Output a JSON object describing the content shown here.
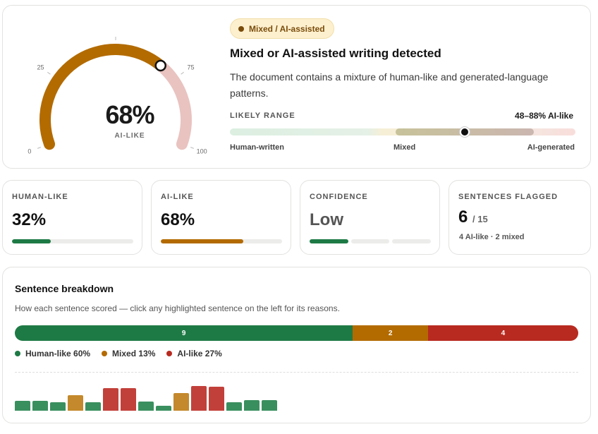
{
  "summary": {
    "gauge": {
      "value": 68,
      "display": "68%",
      "caption": "AI-LIKE",
      "ticks": [
        "0",
        "25",
        "50",
        "75",
        "100"
      ],
      "colors": {
        "filled": "#b36b00",
        "ai_zone": "#e9c3c0",
        "track": "#ececea"
      }
    },
    "badge": "Mixed / AI-assisted",
    "verdict": "Mixed or AI-assisted writing detected",
    "description": "The document contains a mixture of human-like and generated-language patterns.",
    "range": {
      "label": "LIKELY RANGE",
      "value_text": "48–88% AI-like",
      "low": 48,
      "high": 88,
      "point": 68,
      "axis_labels": {
        "left": "Human-written",
        "middle": "Mixed",
        "right": "AI-generated"
      }
    }
  },
  "stats": {
    "human": {
      "label": "HUMAN-LIKE",
      "value": "32%",
      "fraction": 0.32,
      "color": "#1e7a45"
    },
    "ai": {
      "label": "AI-LIKE",
      "value": "68%",
      "fraction": 0.68,
      "color": "#b36b00"
    },
    "confidence": {
      "label": "CONFIDENCE",
      "value": "Low",
      "segments_filled": 1,
      "segments_total": 3,
      "color": "#1e7a45"
    },
    "flagged": {
      "label": "SENTENCES FLAGGED",
      "value": "6",
      "total": "/ 15",
      "detail": "4 AI-like · 2 mixed"
    }
  },
  "breakdown": {
    "title": "Sentence breakdown",
    "subtitle": "How each sentence scored — click any highlighted sentence on the left for its reasons.",
    "parts": [
      {
        "count": "9",
        "fraction": 0.6,
        "color": "#1e7a45"
      },
      {
        "count": "2",
        "fraction": 0.1333,
        "color": "#b36b00"
      },
      {
        "count": "4",
        "fraction": 0.2667,
        "color": "#b82a20"
      }
    ],
    "legend": [
      {
        "label": "Human-like 60%",
        "color": "#1e7a45"
      },
      {
        "label": "Mixed 13%",
        "color": "#b36b00"
      },
      {
        "label": "AI-like 27%",
        "color": "#b82a20"
      }
    ],
    "sentences": [
      {
        "kind": "human",
        "level": 0.4
      },
      {
        "kind": "human",
        "level": 0.4
      },
      {
        "kind": "human",
        "level": 0.32
      },
      {
        "kind": "mixed",
        "level": 0.6
      },
      {
        "kind": "human",
        "level": 0.32
      },
      {
        "kind": "ai",
        "level": 0.9
      },
      {
        "kind": "ai",
        "level": 0.9
      },
      {
        "kind": "human",
        "level": 0.35
      },
      {
        "kind": "human",
        "level": 0.2
      },
      {
        "kind": "mixed",
        "level": 0.7
      },
      {
        "kind": "ai",
        "level": 0.98
      },
      {
        "kind": "ai",
        "level": 0.95
      },
      {
        "kind": "human",
        "level": 0.32
      },
      {
        "kind": "human",
        "level": 0.43
      },
      {
        "kind": "human",
        "level": 0.43
      }
    ],
    "sentence_colors": {
      "human": "#3a8f5f",
      "mixed": "#c4892c",
      "ai": "#c2403a"
    }
  }
}
